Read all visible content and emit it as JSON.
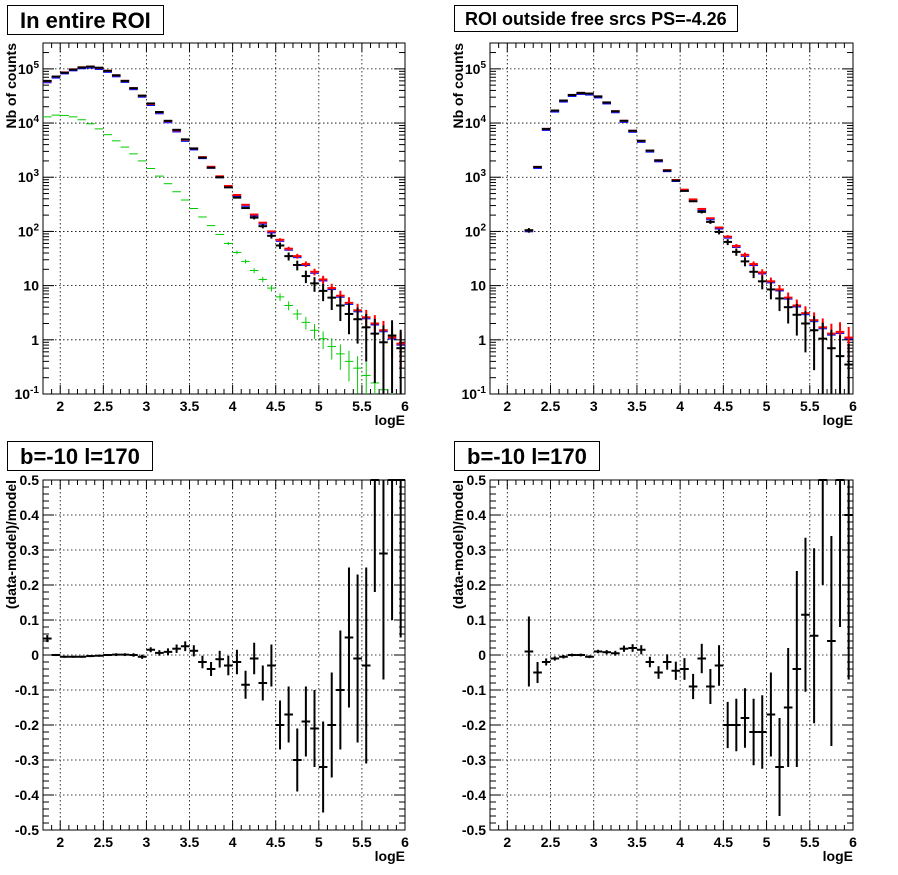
{
  "colors": {
    "data": "#000000",
    "model_total": "#0000ff",
    "model_fit": "#ff0000",
    "diffuse": "#00cc00",
    "grid": "#000000"
  },
  "chart_data": [
    {
      "type": "scatter",
      "title": "In entire ROI",
      "xlabel": "logE",
      "ylabel": "Nb of counts",
      "xlim": [
        1.8,
        6.0
      ],
      "ylim": [
        0.1,
        300000
      ],
      "yscale": "log",
      "grid": true,
      "xticks": [
        "2",
        "2.5",
        "3",
        "3.5",
        "4",
        "4.5",
        "5",
        "5.5",
        "6"
      ],
      "yticks": [
        "10^{-1}",
        "1",
        "10",
        "10^{2}",
        "10^{3}",
        "10^{4}",
        "10^{5}"
      ],
      "x": [
        1.85,
        1.95,
        2.05,
        2.15,
        2.25,
        2.35,
        2.45,
        2.55,
        2.65,
        2.75,
        2.85,
        2.95,
        3.05,
        3.15,
        3.25,
        3.35,
        3.45,
        3.55,
        3.65,
        3.75,
        3.85,
        3.95,
        4.05,
        4.15,
        4.25,
        4.35,
        4.45,
        4.55,
        4.65,
        4.75,
        4.85,
        4.95,
        5.05,
        5.15,
        5.25,
        5.35,
        5.45,
        5.55,
        5.65,
        5.75,
        5.85,
        5.95
      ],
      "series": [
        {
          "name": "data",
          "color": "#000000",
          "values": [
            60000,
            72000,
            85000,
            97000,
            106000,
            110000,
            105000,
            92000,
            76000,
            60000,
            44000,
            32000,
            23000,
            16000,
            11000,
            7500,
            5000,
            3400,
            2300,
            1500,
            1000,
            650,
            420,
            270,
            180,
            125,
            83,
            55,
            35,
            24,
            15,
            11,
            8,
            6,
            4.3,
            3,
            2.4,
            1.7,
            1.3,
            0.9,
            1.2,
            0.7
          ]
        },
        {
          "name": "model",
          "color": "#ff0000",
          "values": [
            59000,
            72000,
            86000,
            98000,
            107000,
            110000,
            104000,
            92000,
            76000,
            60000,
            44000,
            32000,
            22500,
            15800,
            10800,
            7300,
            4900,
            3400,
            2350,
            1560,
            1040,
            690,
            470,
            310,
            205,
            145,
            100,
            70,
            48,
            35,
            25,
            18,
            13,
            9,
            6.5,
            4.8,
            3.5,
            2.6,
            2,
            1.5,
            1.1,
            0.85
          ]
        },
        {
          "name": "diffuse",
          "color": "#00cc00",
          "values": [
            13000,
            14000,
            13800,
            13000,
            11500,
            9700,
            7800,
            6100,
            4700,
            3600,
            2700,
            2000,
            1450,
            1050,
            760,
            540,
            380,
            265,
            185,
            128,
            88,
            60,
            41,
            28,
            19,
            13,
            9,
            6.2,
            4.3,
            3,
            2.1,
            1.5,
            1.05,
            0.75,
            0.55,
            0.4,
            0.3,
            0.22,
            0.16,
            0.12,
            0.09,
            0.07
          ]
        }
      ]
    },
    {
      "type": "scatter",
      "title": "ROI outside free srcs PS=-4.26",
      "xlabel": "logE",
      "ylabel": "Nb of counts",
      "xlim": [
        1.8,
        6.0
      ],
      "ylim": [
        0.1,
        300000
      ],
      "yscale": "log",
      "grid": true,
      "xticks": [
        "2",
        "2.5",
        "3",
        "3.5",
        "4",
        "4.5",
        "5",
        "5.5",
        "6"
      ],
      "yticks": [
        "10^{-1}",
        "1",
        "10",
        "10^{2}",
        "10^{3}",
        "10^{4}",
        "10^{5}"
      ],
      "x": [
        2.25,
        2.35,
        2.45,
        2.55,
        2.65,
        2.75,
        2.85,
        2.95,
        3.05,
        3.15,
        3.25,
        3.35,
        3.45,
        3.55,
        3.65,
        3.75,
        3.85,
        3.95,
        4.05,
        4.15,
        4.25,
        4.35,
        4.45,
        4.55,
        4.65,
        4.75,
        4.85,
        4.95,
        5.05,
        5.15,
        5.25,
        5.35,
        5.45,
        5.55,
        5.65,
        5.75,
        5.85,
        5.95
      ],
      "series": [
        {
          "name": "data",
          "color": "#000000",
          "values": [
            105,
            1550,
            7800,
            17000,
            26000,
            33000,
            36000,
            35000,
            31000,
            24000,
            16500,
            11000,
            7200,
            4700,
            3100,
            2050,
            1330,
            870,
            560,
            360,
            230,
            150,
            98,
            64,
            42,
            28,
            18,
            12,
            8.5,
            5.8,
            4,
            2.9,
            2,
            1.5,
            1.05,
            0.7,
            0.5,
            0.35
          ]
        },
        {
          "name": "model",
          "color": "#ff0000",
          "values": [
            105,
            1550,
            7800,
            17000,
            26000,
            33000,
            36000,
            35000,
            31000,
            24000,
            16500,
            11000,
            7200,
            4700,
            3100,
            2050,
            1350,
            890,
            590,
            390,
            260,
            175,
            118,
            80,
            54,
            37,
            25,
            17.5,
            12,
            8.5,
            6,
            4.3,
            3.1,
            2.3,
            1.7,
            1.3,
            1.4,
            1.1
          ]
        }
      ]
    },
    {
      "type": "scatter",
      "title": "b=-10 l=170",
      "xlabel": "logE",
      "ylabel": "(data-model)/model",
      "xlim": [
        1.8,
        6.0
      ],
      "ylim": [
        -0.5,
        0.5
      ],
      "grid": true,
      "xticks": [
        "2",
        "2.5",
        "3",
        "3.5",
        "4",
        "4.5",
        "5",
        "5.5",
        "6"
      ],
      "yticks": [
        "-0.5",
        "-0.4",
        "-0.3",
        "-0.2",
        "-0.1",
        "0",
        "0.1",
        "0.2",
        "0.3",
        "0.4",
        "0.5"
      ],
      "x": [
        1.85,
        1.95,
        2.05,
        2.15,
        2.25,
        2.35,
        2.45,
        2.55,
        2.65,
        2.75,
        2.85,
        2.95,
        3.05,
        3.15,
        3.25,
        3.35,
        3.45,
        3.55,
        3.65,
        3.75,
        3.85,
        3.95,
        4.05,
        4.15,
        4.25,
        4.35,
        4.45,
        4.55,
        4.65,
        4.75,
        4.85,
        4.95,
        5.05,
        5.15,
        5.25,
        5.35,
        5.45,
        5.55,
        5.65,
        5.75,
        5.85,
        5.95
      ],
      "values": [
        0.047,
        0.0,
        -0.005,
        -0.005,
        -0.005,
        -0.003,
        -0.002,
        0.0,
        0.001,
        0.001,
        0.0,
        -0.005,
        0.015,
        0.006,
        0.009,
        0.018,
        0.025,
        0.012,
        -0.02,
        -0.04,
        -0.012,
        -0.03,
        -0.02,
        -0.085,
        -0.01,
        -0.08,
        -0.03,
        -0.2,
        -0.17,
        -0.3,
        -0.19,
        -0.21,
        -0.32,
        -0.2,
        -0.1,
        0.05,
        -0.01,
        -0.03,
        0.5,
        0.29,
        0.5,
        0.5
      ],
      "errors": [
        0.01,
        0.003,
        0.003,
        0.003,
        0.003,
        0.003,
        0.003,
        0.003,
        0.004,
        0.004,
        0.005,
        0.006,
        0.007,
        0.008,
        0.01,
        0.012,
        0.014,
        0.016,
        0.018,
        0.02,
        0.024,
        0.028,
        0.035,
        0.04,
        0.045,
        0.05,
        0.06,
        0.07,
        0.08,
        0.09,
        0.1,
        0.11,
        0.13,
        0.15,
        0.17,
        0.2,
        0.24,
        0.28,
        0.32,
        0.36,
        0.4,
        0.45
      ]
    },
    {
      "type": "scatter",
      "title": "b=-10 l=170",
      "xlabel": "logE",
      "ylabel": "(data-model)/model",
      "xlim": [
        1.8,
        6.0
      ],
      "ylim": [
        -0.5,
        0.5
      ],
      "grid": true,
      "xticks": [
        "2",
        "2.5",
        "3",
        "3.5",
        "4",
        "4.5",
        "5",
        "5.5",
        "6"
      ],
      "yticks": [
        "-0.5",
        "-0.4",
        "-0.3",
        "-0.2",
        "-0.1",
        "0",
        "0.1",
        "0.2",
        "0.3",
        "0.4",
        "0.5"
      ],
      "x": [
        2.25,
        2.35,
        2.45,
        2.55,
        2.65,
        2.75,
        2.85,
        2.95,
        3.05,
        3.15,
        3.25,
        3.35,
        3.45,
        3.55,
        3.65,
        3.75,
        3.85,
        3.95,
        4.05,
        4.15,
        4.25,
        4.35,
        4.45,
        4.55,
        4.65,
        4.75,
        4.85,
        4.95,
        5.05,
        5.15,
        5.25,
        5.35,
        5.45,
        5.55,
        5.65,
        5.75,
        5.85,
        5.95
      ],
      "values": [
        0.01,
        -0.05,
        -0.02,
        -0.01,
        -0.005,
        0.0,
        0.0,
        -0.005,
        0.01,
        0.008,
        0.005,
        0.018,
        0.02,
        0.015,
        -0.02,
        -0.05,
        -0.02,
        -0.045,
        -0.04,
        -0.09,
        -0.01,
        -0.09,
        -0.03,
        -0.2,
        -0.2,
        -0.18,
        -0.22,
        -0.22,
        -0.17,
        -0.32,
        -0.15,
        -0.04,
        0.115,
        0.055,
        0.5,
        0.04,
        0.5,
        0.4
      ],
      "errors": [
        0.1,
        0.03,
        0.01,
        0.006,
        0.005,
        0.004,
        0.004,
        0.004,
        0.005,
        0.006,
        0.007,
        0.009,
        0.011,
        0.013,
        0.015,
        0.018,
        0.022,
        0.026,
        0.031,
        0.036,
        0.042,
        0.05,
        0.058,
        0.066,
        0.075,
        0.085,
        0.095,
        0.105,
        0.12,
        0.14,
        0.17,
        0.28,
        0.22,
        0.25,
        0.3,
        0.3,
        0.42,
        0.47
      ]
    }
  ]
}
